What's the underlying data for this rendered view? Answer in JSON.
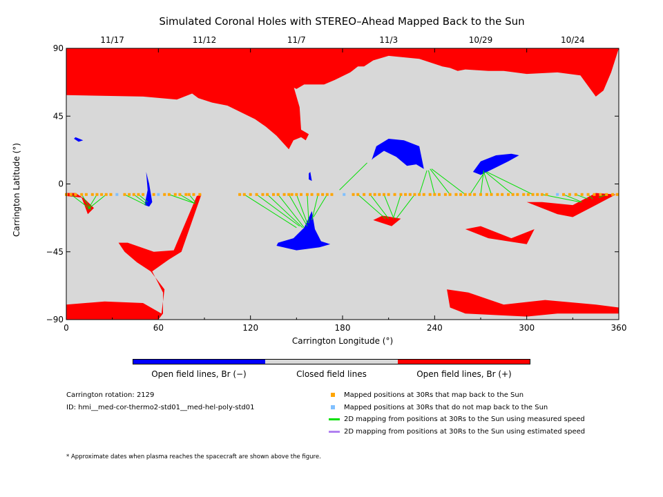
{
  "title": "Simulated Coronal Holes with STEREO–Ahead Mapped Back to the Sun",
  "chart_data": {
    "type": "scatter",
    "xlabel": "Carrington Longitude (°)",
    "ylabel": "Carrington Latitude (°)",
    "xlim": [
      0,
      360
    ],
    "ylim": [
      -90,
      90
    ],
    "x_ticks": [
      0,
      60,
      120,
      180,
      240,
      300,
      360
    ],
    "y_ticks": [
      90,
      45,
      0,
      -45,
      -90
    ],
    "top_date_ticks": [
      {
        "label": "11/17",
        "x": 30
      },
      {
        "label": "11/12",
        "x": 90
      },
      {
        "label": "11/7",
        "x": 150
      },
      {
        "label": "11/3",
        "x": 210
      },
      {
        "label": "10/29",
        "x": 270
      },
      {
        "label": "10/24",
        "x": 330
      }
    ],
    "colors": {
      "closed": "#d8d8d8",
      "open_negative": "#0000ff",
      "open_positive": "#ff0000",
      "mapped_back": "#ffa500",
      "not_mapped": "#80c0ff",
      "measured_speed": "#00e000",
      "estimated_speed": "#b080f0"
    },
    "positive_holes": [
      [
        [
          0,
          90
        ],
        [
          360,
          90
        ],
        [
          360,
          -86
        ],
        [
          320,
          -86
        ],
        [
          300,
          -88
        ],
        [
          260,
          -86
        ],
        [
          250,
          -82
        ],
        [
          248,
          -70
        ],
        [
          262,
          -72
        ],
        [
          285,
          -80
        ],
        [
          312,
          -77
        ],
        [
          345,
          -80
        ],
        [
          360,
          -82
        ],
        [
          360,
          90
        ]
      ],
      [
        [
          0,
          90
        ],
        [
          0,
          -80
        ],
        [
          25,
          -78
        ],
        [
          50,
          -79
        ],
        [
          62,
          -86
        ],
        [
          64,
          -70
        ],
        [
          55,
          -58
        ],
        [
          46,
          -52
        ],
        [
          38,
          -45
        ],
        [
          34,
          -39
        ],
        [
          40,
          -39
        ],
        [
          57,
          -45
        ],
        [
          70,
          -44
        ],
        [
          85,
          -8
        ],
        [
          88,
          -7
        ],
        [
          75,
          -45
        ],
        [
          67,
          -50
        ],
        [
          56,
          -58
        ],
        [
          63,
          -72
        ],
        [
          63,
          -86
        ],
        [
          60,
          -90
        ],
        [
          0,
          -90
        ]
      ],
      [
        [
          0,
          90
        ],
        [
          0,
          59
        ],
        [
          50,
          58
        ],
        [
          72,
          56
        ],
        [
          82,
          60
        ],
        [
          86,
          57
        ],
        [
          95,
          54
        ],
        [
          105,
          52
        ],
        [
          113,
          48
        ],
        [
          123,
          43
        ],
        [
          130,
          38
        ],
        [
          137,
          32
        ],
        [
          145,
          23
        ],
        [
          148,
          29
        ],
        [
          153,
          31
        ],
        [
          156,
          29
        ],
        [
          158,
          33
        ],
        [
          153,
          36
        ],
        [
          152,
          51
        ],
        [
          148,
          65
        ],
        [
          142,
          70
        ],
        [
          144,
          66
        ],
        [
          150,
          63
        ],
        [
          155,
          66
        ],
        [
          168,
          66
        ],
        [
          175,
          69
        ],
        [
          185,
          74
        ],
        [
          190,
          78
        ],
        [
          194,
          78
        ],
        [
          200,
          82
        ],
        [
          210,
          85
        ],
        [
          230,
          83
        ],
        [
          245,
          78
        ],
        [
          250,
          77
        ],
        [
          255,
          75
        ],
        [
          260,
          76
        ],
        [
          275,
          75
        ],
        [
          285,
          75
        ],
        [
          300,
          73
        ],
        [
          320,
          74
        ],
        [
          335,
          72
        ],
        [
          345,
          58
        ],
        [
          350,
          62
        ],
        [
          355,
          74
        ],
        [
          360,
          90
        ]
      ],
      [
        [
          0,
          90
        ],
        [
          0,
          -8
        ],
        [
          10,
          -9
        ],
        [
          14,
          -20
        ],
        [
          18,
          -16
        ],
        [
          12,
          -10
        ],
        [
          6,
          -6
        ],
        [
          0,
          -6
        ]
      ],
      [
        [
          260,
          -30
        ],
        [
          275,
          -36
        ],
        [
          300,
          -40
        ],
        [
          305,
          -30
        ],
        [
          290,
          -36
        ],
        [
          270,
          -28
        ]
      ],
      [
        [
          200,
          -24
        ],
        [
          212,
          -28
        ],
        [
          218,
          -23
        ],
        [
          206,
          -21
        ]
      ],
      [
        [
          300,
          -12
        ],
        [
          320,
          -20
        ],
        [
          330,
          -22
        ],
        [
          345,
          -14
        ],
        [
          358,
          -7
        ],
        [
          345,
          -6
        ],
        [
          330,
          -14
        ],
        [
          310,
          -12
        ]
      ]
    ],
    "negative_holes": [
      [
        [
          138,
          -39
        ],
        [
          148,
          -36
        ],
        [
          155,
          -29
        ],
        [
          160,
          -18
        ],
        [
          162,
          -30
        ],
        [
          166,
          -38
        ],
        [
          172,
          -40
        ],
        [
          165,
          -42
        ],
        [
          150,
          -44
        ],
        [
          137,
          -41
        ]
      ],
      [
        [
          51,
          -14
        ],
        [
          53,
          -4
        ],
        [
          52,
          8
        ],
        [
          54,
          0
        ],
        [
          56,
          -12
        ],
        [
          54,
          -15
        ]
      ],
      [
        [
          199,
          16
        ],
        [
          202,
          25
        ],
        [
          210,
          30
        ],
        [
          220,
          29
        ],
        [
          230,
          25
        ],
        [
          233,
          10
        ],
        [
          228,
          13
        ],
        [
          222,
          12
        ],
        [
          215,
          18
        ],
        [
          207,
          22
        ],
        [
          200,
          17
        ]
      ],
      [
        [
          265,
          8
        ],
        [
          270,
          15
        ],
        [
          280,
          19
        ],
        [
          290,
          20
        ],
        [
          295,
          19
        ],
        [
          288,
          15
        ],
        [
          278,
          10
        ],
        [
          270,
          6
        ]
      ],
      [
        [
          5,
          30
        ],
        [
          8,
          28
        ],
        [
          11,
          29
        ],
        [
          6,
          31
        ]
      ],
      [
        [
          158,
          7
        ],
        [
          158,
          3
        ],
        [
          160,
          2
        ],
        [
          159,
          8
        ]
      ]
    ],
    "mapped_positions_30Rs": {
      "latitude": -7,
      "mapped_back_longitudes": [
        0,
        3,
        6,
        10,
        13,
        17,
        20,
        23,
        26,
        29,
        38,
        41,
        44,
        47,
        50,
        57,
        64,
        67,
        71,
        74,
        78,
        80,
        83,
        87,
        113,
        116,
        120,
        124,
        128,
        131,
        135,
        138,
        142,
        145,
        147,
        150,
        153,
        157,
        160,
        164,
        167,
        170,
        173,
        187,
        190,
        194,
        198,
        201,
        204,
        207,
        210,
        214,
        218,
        221,
        224,
        227,
        230,
        233,
        237,
        240,
        243,
        247,
        250,
        254,
        257,
        260,
        263,
        266,
        270,
        274,
        277,
        281,
        284,
        288,
        291,
        294,
        298,
        301,
        304,
        307,
        310,
        313,
        324,
        328,
        332,
        336,
        340,
        344,
        348,
        352,
        356,
        359
      ],
      "not_mapped_longitudes": [
        33,
        60,
        181,
        320
      ]
    },
    "mapping_lines_measured": [
      [
        [
          3,
          -7
        ],
        [
          16,
          -17
        ]
      ],
      [
        [
          10,
          -7
        ],
        [
          16,
          -17
        ]
      ],
      [
        [
          20,
          -7
        ],
        [
          14,
          -17
        ]
      ],
      [
        [
          26,
          -7
        ],
        [
          15,
          -16
        ]
      ],
      [
        [
          38,
          -7
        ],
        [
          52,
          -14
        ]
      ],
      [
        [
          44,
          -7
        ],
        [
          52,
          -13
        ]
      ],
      [
        [
          47,
          -7
        ],
        [
          53,
          -12
        ]
      ],
      [
        [
          67,
          -7
        ],
        [
          84,
          -13
        ]
      ],
      [
        [
          74,
          -7
        ],
        [
          84,
          -13
        ]
      ],
      [
        [
          80,
          -7
        ],
        [
          84,
          -12
        ]
      ],
      [
        [
          116,
          -7
        ],
        [
          150,
          -29
        ]
      ],
      [
        [
          124,
          -7
        ],
        [
          152,
          -28
        ]
      ],
      [
        [
          131,
          -7
        ],
        [
          154,
          -29
        ]
      ],
      [
        [
          138,
          -7
        ],
        [
          155,
          -29
        ]
      ],
      [
        [
          145,
          -7
        ],
        [
          157,
          -28
        ]
      ],
      [
        [
          150,
          -7
        ],
        [
          157,
          -26
        ]
      ],
      [
        [
          157,
          -7
        ],
        [
          158,
          -26
        ]
      ],
      [
        [
          164,
          -7
        ],
        [
          160,
          -24
        ]
      ],
      [
        [
          170,
          -7
        ],
        [
          161,
          -22
        ]
      ],
      [
        [
          178,
          -4
        ],
        [
          196,
          14
        ]
      ],
      [
        [
          190,
          -7
        ],
        [
          208,
          -23
        ]
      ],
      [
        [
          198,
          -7
        ],
        [
          210,
          -23
        ]
      ],
      [
        [
          207,
          -7
        ],
        [
          213,
          -22
        ]
      ],
      [
        [
          218,
          -7
        ],
        [
          213,
          -23
        ]
      ],
      [
        [
          227,
          -7
        ],
        [
          215,
          -23
        ]
      ],
      [
        [
          230,
          -7
        ],
        [
          235,
          9
        ]
      ],
      [
        [
          240,
          -7
        ],
        [
          236,
          9
        ]
      ],
      [
        [
          250,
          -7
        ],
        [
          237,
          10
        ]
      ],
      [
        [
          260,
          -7
        ],
        [
          238,
          10
        ]
      ],
      [
        [
          263,
          -7
        ],
        [
          272,
          7
        ]
      ],
      [
        [
          270,
          -7
        ],
        [
          272,
          9
        ]
      ],
      [
        [
          277,
          -7
        ],
        [
          272,
          8
        ]
      ],
      [
        [
          291,
          -7
        ],
        [
          273,
          8
        ]
      ],
      [
        [
          304,
          -7
        ],
        [
          274,
          8
        ]
      ],
      [
        [
          310,
          -7
        ],
        [
          335,
          -12
        ]
      ],
      [
        [
          324,
          -7
        ],
        [
          336,
          -12
        ]
      ],
      [
        [
          332,
          -7
        ],
        [
          340,
          -10
        ]
      ],
      [
        [
          340,
          -7
        ],
        [
          343,
          -10
        ]
      ],
      [
        [
          352,
          -7
        ],
        [
          347,
          -9
        ]
      ]
    ]
  },
  "colorbar": {
    "labels": [
      "Open field lines, Br (−)",
      "Closed field lines",
      "Open field lines, Br (+)"
    ]
  },
  "info": {
    "rotation": "Carrington rotation: 2129",
    "id": "ID: hmi__med-cor-thermo2-std01__med-hel-poly-std01"
  },
  "legend": [
    {
      "label": "Mapped positions at 30Rs that map back to the Sun",
      "color": "#ffa500",
      "kind": "square"
    },
    {
      "label": "Mapped positions at 30Rs that do not map back to the Sun",
      "color": "#80c0ff",
      "kind": "square"
    },
    {
      "label": "2D mapping from positions at 30Rs to the Sun using measured speed",
      "color": "#00e000",
      "kind": "line"
    },
    {
      "label": "2D mapping from positions at 30Rs to the Sun using estimated speed",
      "color": "#b080f0",
      "kind": "line"
    }
  ],
  "footnote": "* Approximate dates when plasma reaches the spacecraft are shown above the figure."
}
